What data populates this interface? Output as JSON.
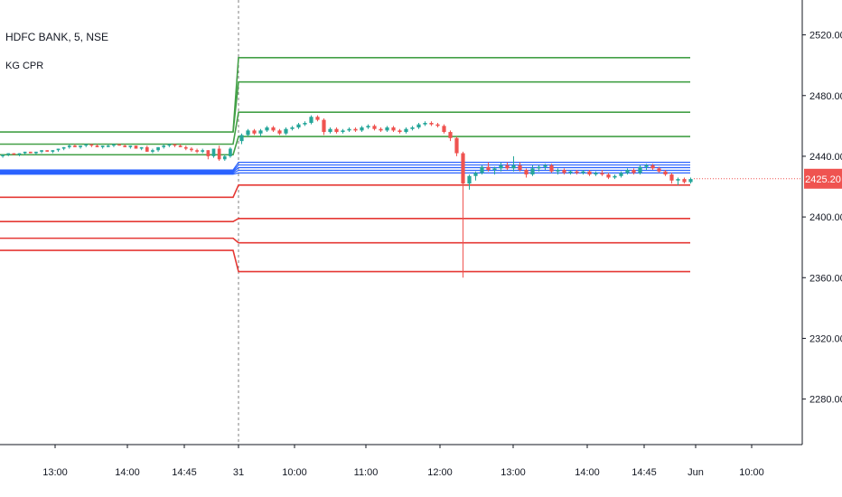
{
  "legend": {
    "symbol": "HDFC BANK, 5, NSE",
    "indicator": "KG CPR"
  },
  "last_price": "2425.20",
  "colors": {
    "up": "#26a69a",
    "down": "#ef5350",
    "resistance": "#43a047",
    "support": "#e53935",
    "pivot": "#2962ff",
    "axis": "#131722",
    "grid": "#e6e6e6"
  },
  "chart_data": {
    "type": "candlestick",
    "ylim": [
      2250,
      2540
    ],
    "y_ticks": [
      2520,
      2480,
      2440,
      2400,
      2360,
      2320,
      2280
    ],
    "y_tick_labels": [
      "2520.00",
      "2480.00",
      "2440.00",
      "2400.00",
      "2360.00",
      "2320.00",
      "2280.00"
    ],
    "x_ticks": [
      "13:00",
      "14:00",
      "14:45",
      "31",
      "10:00",
      "11:00",
      "12:00",
      "13:00",
      "14:00",
      "14:45",
      "Jun",
      "10:00"
    ],
    "session_break": "31",
    "levels_day1": {
      "resistance": [
        2456,
        2448,
        2441
      ],
      "pivot_band": [
        2431,
        2428
      ],
      "support": [
        2413,
        2397,
        2386,
        2378
      ]
    },
    "levels_day2": {
      "resistance": [
        2505,
        2489,
        2469,
        2453
      ],
      "pivot": [
        2436,
        2433,
        2429
      ],
      "support": [
        2421,
        2399,
        2383,
        2364
      ]
    },
    "candles_day1": [
      [
        2440,
        2441,
        2439,
        2441
      ],
      [
        2441,
        2442,
        2440,
        2442
      ],
      [
        2442,
        2442,
        2441,
        2441
      ],
      [
        2441,
        2442,
        2440,
        2442
      ],
      [
        2442,
        2443,
        2441,
        2443
      ],
      [
        2443,
        2443,
        2442,
        2442
      ],
      [
        2442,
        2443,
        2441,
        2443
      ],
      [
        2443,
        2444,
        2442,
        2444
      ],
      [
        2444,
        2444,
        2443,
        2443
      ],
      [
        2443,
        2444,
        2442,
        2444
      ],
      [
        2444,
        2445,
        2443,
        2445
      ],
      [
        2445,
        2446,
        2444,
        2446
      ],
      [
        2446,
        2448,
        2445,
        2447
      ],
      [
        2447,
        2448,
        2446,
        2446
      ],
      [
        2446,
        2447,
        2445,
        2447
      ],
      [
        2447,
        2448,
        2446,
        2448
      ],
      [
        2448,
        2448,
        2446,
        2447
      ],
      [
        2447,
        2448,
        2446,
        2446
      ],
      [
        2446,
        2447,
        2445,
        2447
      ],
      [
        2447,
        2448,
        2446,
        2447
      ],
      [
        2447,
        2448,
        2446,
        2448
      ],
      [
        2448,
        2448,
        2447,
        2447
      ],
      [
        2447,
        2448,
        2446,
        2446
      ],
      [
        2446,
        2447,
        2445,
        2447
      ],
      [
        2447,
        2447,
        2445,
        2445
      ],
      [
        2445,
        2446,
        2444,
        2446
      ],
      [
        2446,
        2447,
        2443,
        2443
      ],
      [
        2443,
        2445,
        2442,
        2444
      ],
      [
        2444,
        2446,
        2443,
        2446
      ],
      [
        2446,
        2448,
        2445,
        2447
      ],
      [
        2447,
        2448,
        2446,
        2448
      ],
      [
        2448,
        2448,
        2446,
        2447
      ],
      [
        2447,
        2448,
        2446,
        2446
      ],
      [
        2446,
        2447,
        2444,
        2445
      ],
      [
        2445,
        2446,
        2443,
        2444
      ],
      [
        2444,
        2445,
        2442,
        2443
      ],
      [
        2443,
        2445,
        2442,
        2444
      ],
      [
        2444,
        2444,
        2438,
        2440
      ],
      [
        2440,
        2445,
        2439,
        2445
      ],
      [
        2445,
        2447,
        2437,
        2438
      ],
      [
        2438,
        2441,
        2437,
        2440
      ],
      [
        2440,
        2446,
        2439,
        2445
      ]
    ],
    "candles_day2": [
      [
        2450,
        2455,
        2448,
        2454
      ],
      [
        2454,
        2458,
        2453,
        2457
      ],
      [
        2457,
        2458,
        2454,
        2455
      ],
      [
        2455,
        2458,
        2453,
        2457
      ],
      [
        2457,
        2460,
        2456,
        2459
      ],
      [
        2459,
        2460,
        2456,
        2457
      ],
      [
        2457,
        2458,
        2454,
        2455
      ],
      [
        2455,
        2459,
        2454,
        2458
      ],
      [
        2458,
        2460,
        2457,
        2459
      ],
      [
        2459,
        2462,
        2458,
        2461
      ],
      [
        2461,
        2463,
        2460,
        2462
      ],
      [
        2462,
        2467,
        2461,
        2466
      ],
      [
        2466,
        2467,
        2463,
        2464
      ],
      [
        2464,
        2465,
        2454,
        2456
      ],
      [
        2456,
        2459,
        2455,
        2458
      ],
      [
        2458,
        2459,
        2455,
        2456
      ],
      [
        2456,
        2458,
        2455,
        2457
      ],
      [
        2457,
        2459,
        2456,
        2458
      ],
      [
        2458,
        2459,
        2456,
        2457
      ],
      [
        2457,
        2460,
        2456,
        2459
      ],
      [
        2459,
        2461,
        2458,
        2460
      ],
      [
        2460,
        2461,
        2457,
        2458
      ],
      [
        2458,
        2459,
        2456,
        2457
      ],
      [
        2457,
        2460,
        2456,
        2459
      ],
      [
        2459,
        2460,
        2456,
        2457
      ],
      [
        2457,
        2458,
        2455,
        2456
      ],
      [
        2456,
        2459,
        2455,
        2458
      ],
      [
        2458,
        2460,
        2457,
        2459
      ],
      [
        2459,
        2462,
        2458,
        2461
      ],
      [
        2461,
        2463,
        2460,
        2462
      ],
      [
        2462,
        2463,
        2460,
        2461
      ],
      [
        2461,
        2462,
        2459,
        2460
      ],
      [
        2460,
        2461,
        2455,
        2456
      ],
      [
        2456,
        2457,
        2450,
        2452
      ],
      [
        2452,
        2453,
        2440,
        2442
      ],
      [
        2442,
        2443,
        2360,
        2422
      ],
      [
        2422,
        2428,
        2418,
        2427
      ],
      [
        2427,
        2430,
        2424,
        2429
      ],
      [
        2429,
        2434,
        2428,
        2433
      ],
      [
        2433,
        2436,
        2430,
        2431
      ],
      [
        2431,
        2433,
        2428,
        2432
      ],
      [
        2432,
        2436,
        2430,
        2434
      ],
      [
        2434,
        2436,
        2431,
        2432
      ],
      [
        2432,
        2440,
        2430,
        2434
      ],
      [
        2434,
        2436,
        2430,
        2431
      ],
      [
        2431,
        2432,
        2426,
        2428
      ],
      [
        2428,
        2434,
        2427,
        2432
      ],
      [
        2432,
        2434,
        2430,
        2433
      ],
      [
        2433,
        2435,
        2431,
        2434
      ],
      [
        2434,
        2435,
        2429,
        2430
      ],
      [
        2430,
        2432,
        2428,
        2431
      ],
      [
        2431,
        2432,
        2428,
        2429
      ],
      [
        2429,
        2431,
        2428,
        2430
      ],
      [
        2430,
        2431,
        2428,
        2429
      ],
      [
        2429,
        2431,
        2428,
        2430
      ],
      [
        2430,
        2431,
        2427,
        2428
      ],
      [
        2428,
        2430,
        2427,
        2429
      ],
      [
        2429,
        2431,
        2427,
        2428
      ],
      [
        2428,
        2429,
        2425,
        2426
      ],
      [
        2426,
        2428,
        2425,
        2427
      ],
      [
        2427,
        2430,
        2426,
        2429
      ],
      [
        2429,
        2432,
        2428,
        2431
      ],
      [
        2431,
        2432,
        2428,
        2429
      ],
      [
        2429,
        2434,
        2428,
        2433
      ],
      [
        2433,
        2435,
        2431,
        2434
      ],
      [
        2434,
        2435,
        2431,
        2432
      ],
      [
        2432,
        2433,
        2429,
        2430
      ],
      [
        2430,
        2431,
        2427,
        2428
      ],
      [
        2428,
        2429,
        2422,
        2424
      ],
      [
        2424,
        2426,
        2421,
        2425
      ],
      [
        2425,
        2426,
        2422,
        2423
      ],
      [
        2423,
        2426,
        2422,
        2425
      ]
    ]
  }
}
